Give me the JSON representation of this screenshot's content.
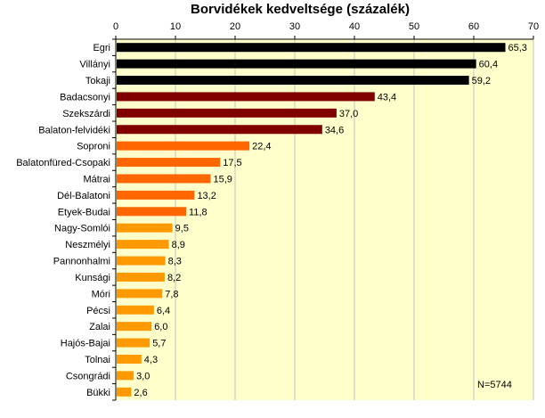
{
  "chart_data": {
    "type": "bar",
    "orientation": "horizontal",
    "title": "Borvidékek kedveltsége (százalék)",
    "xlabel": "",
    "ylabel": "",
    "xlim": [
      0,
      70
    ],
    "xticks": [
      0,
      10,
      20,
      30,
      40,
      50,
      60,
      70
    ],
    "grid": true,
    "annotation": "N=5744",
    "categories": [
      "Egri",
      "Villányi",
      "Tokaji",
      "Badacsonyi",
      "Szekszárdi",
      "Balaton-felvidéki",
      "Soproni",
      "Balatonfüred-Csopaki",
      "Mátrai",
      "Dél-Balatoni",
      "Etyek-Budai",
      "Nagy-Somlói",
      "Neszmélyi",
      "Pannonhalmi",
      "Kunsági",
      "Móri",
      "Pécsi",
      "Zalai",
      "Hajós-Bajai",
      "Tolnai",
      "Csongrádi",
      "Bükki"
    ],
    "values": [
      65.3,
      60.4,
      59.2,
      43.4,
      37.0,
      34.6,
      22.4,
      17.5,
      15.9,
      13.2,
      11.8,
      9.5,
      8.9,
      8.3,
      8.2,
      7.8,
      6.4,
      6.0,
      5.7,
      4.3,
      3.0,
      2.6
    ],
    "value_labels": [
      "65,3",
      "60,4",
      "59,2",
      "43,4",
      "37,0",
      "34,6",
      "22,4",
      "17,5",
      "15,9",
      "13,2",
      "11,8",
      "9,5",
      "8,9",
      "8,3",
      "8,2",
      "7,8",
      "6,4",
      "6,0",
      "5,7",
      "4,3",
      "3,0",
      "2,6"
    ],
    "bar_colors": [
      "#000000",
      "#000000",
      "#000000",
      "#800000",
      "#800000",
      "#800000",
      "#FF6600",
      "#FF6600",
      "#FF6600",
      "#FF6600",
      "#FF6600",
      "#FF9900",
      "#FF9900",
      "#FF9900",
      "#FF9900",
      "#FF9900",
      "#FF9900",
      "#FF9900",
      "#FF9900",
      "#FF9900",
      "#FF9900",
      "#FF9900"
    ],
    "plot_background": "#FFFFCC",
    "grid_color": "#C0C0C0"
  }
}
